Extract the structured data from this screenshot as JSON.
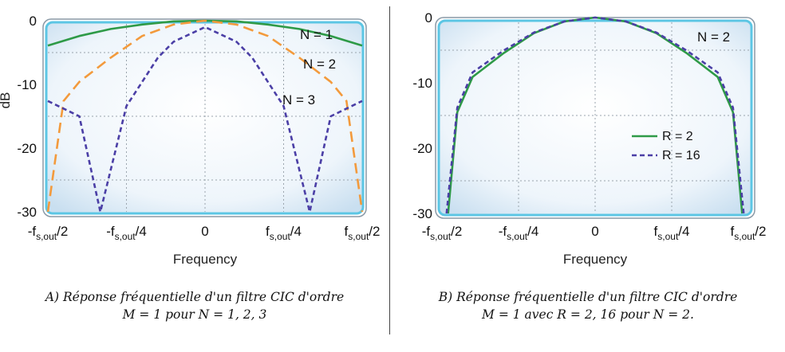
{
  "chart_data": [
    {
      "type": "line",
      "title": "",
      "xlabel": "Frequency",
      "ylabel": "dB",
      "xlim": [
        -0.5,
        0.5
      ],
      "ylim": [
        -30,
        0
      ],
      "grid": true,
      "x_ticks": [
        {
          "value": -0.5,
          "base": "-f",
          "sub": "s,out",
          "tail": "/2"
        },
        {
          "value": -0.25,
          "base": "-f",
          "sub": "s,out",
          "tail": "/4"
        },
        {
          "value": 0,
          "base": "0",
          "sub": "",
          "tail": ""
        },
        {
          "value": 0.25,
          "base": "f",
          "sub": "s,out",
          "tail": "/4"
        },
        {
          "value": 0.5,
          "base": "f",
          "sub": "s,out",
          "tail": "/2"
        }
      ],
      "y_ticks": [
        "0",
        "-10",
        "-20",
        "-30"
      ],
      "y_tick_values": [
        0,
        -10,
        -20,
        -30
      ],
      "x_unit": "f_s,out",
      "series": [
        {
          "annotation": "N = 1",
          "order": 1,
          "rate": 1,
          "color": "#2e9a47",
          "style": "solid",
          "x": [
            -0.5,
            -0.4,
            -0.3,
            -0.2,
            -0.1,
            0,
            0.1,
            0.2,
            0.3,
            0.4,
            0.5
          ],
          "y": [
            -3.9,
            -2.4,
            -1.3,
            -0.6,
            -0.1,
            0,
            -0.1,
            -0.6,
            -1.3,
            -2.4,
            -3.9
          ]
        },
        {
          "annotation": "N = 2",
          "order": 2,
          "rate": 1,
          "color": "#f39a3c",
          "style": "long-dash",
          "x": [
            -0.5,
            -0.45,
            -0.4,
            -0.3,
            -0.2,
            -0.1,
            0,
            0.1,
            0.2,
            0.3,
            0.4,
            0.45,
            0.5
          ],
          "y": [
            -30,
            -12.6,
            -9.6,
            -5.8,
            -2.4,
            -0.6,
            0,
            -0.6,
            -2.4,
            -5.8,
            -9.6,
            -12.6,
            -30
          ]
        },
        {
          "annotation": "N = 3",
          "order": 3,
          "rate": 1,
          "color": "#4b3fa6",
          "style": "dashed",
          "x": [
            -0.5,
            -0.4,
            -0.333,
            -0.25,
            -0.2,
            -0.15,
            -0.1,
            0,
            0.1,
            0.15,
            0.2,
            0.25,
            0.333,
            0.4,
            0.5
          ],
          "y": [
            -12.6,
            -15,
            -30,
            -13.4,
            -9.6,
            -5.8,
            -3.3,
            -1,
            -3.3,
            -5.8,
            -9.6,
            -13.4,
            -30,
            -15,
            -12.6
          ]
        }
      ],
      "annotations": [
        "N = 1",
        "N = 2",
        "N = 3"
      ]
    },
    {
      "type": "line",
      "title": "",
      "xlabel": "Frequency",
      "ylabel": "",
      "xlim": [
        -0.5,
        0.5
      ],
      "ylim": [
        -30,
        0
      ],
      "grid": true,
      "x_ticks": [
        {
          "value": -0.5,
          "base": "-f",
          "sub": "s,out",
          "tail": "/2"
        },
        {
          "value": -0.25,
          "base": "-f",
          "sub": "s,out",
          "tail": "/4"
        },
        {
          "value": 0,
          "base": "0",
          "sub": "",
          "tail": ""
        },
        {
          "value": 0.25,
          "base": "f",
          "sub": "s,out",
          "tail": "/4"
        },
        {
          "value": 0.5,
          "base": "f",
          "sub": "s,out",
          "tail": "/2"
        }
      ],
      "y_ticks": [
        "0",
        "-10",
        "-20",
        "-30"
      ],
      "y_tick_values": [
        0,
        -10,
        -20,
        -30
      ],
      "x_unit": "f_s,out",
      "annotation": "N = 2",
      "legend_position": "lower-right",
      "series": [
        {
          "name": "R = 2",
          "order": 2,
          "rate": 2,
          "color": "#2e9a47",
          "style": "solid",
          "x": [
            -0.48,
            -0.45,
            -0.4,
            -0.3,
            -0.2,
            -0.1,
            0,
            0.1,
            0.2,
            0.3,
            0.4,
            0.45,
            0.48
          ],
          "y": [
            -30,
            -14.5,
            -9.1,
            -5.5,
            -2.4,
            -0.6,
            0,
            -0.6,
            -2.4,
            -5.5,
            -9.1,
            -14.5,
            -30
          ]
        },
        {
          "name": "R = 16",
          "order": 2,
          "rate": 16,
          "color": "#4b3fa6",
          "style": "dashed",
          "x": [
            -0.485,
            -0.45,
            -0.4,
            -0.3,
            -0.2,
            -0.1,
            0,
            0.1,
            0.2,
            0.3,
            0.4,
            0.45,
            0.485
          ],
          "y": [
            -30,
            -13.8,
            -8.4,
            -5.1,
            -2.3,
            -0.6,
            0,
            -0.6,
            -2.3,
            -5.1,
            -8.4,
            -13.8,
            -30
          ]
        }
      ]
    }
  ],
  "captions": {
    "a_line1": "A) Réponse fréquentielle d'un filtre CIC d'ordre",
    "a_line2": "M = 1 pour N = 1, 2, 3",
    "b_line1": "B) Réponse fréquentielle d'un filtre CIC d'ordre",
    "b_line2": "M = 1 avec R = 2, 16 pour N = 2."
  }
}
